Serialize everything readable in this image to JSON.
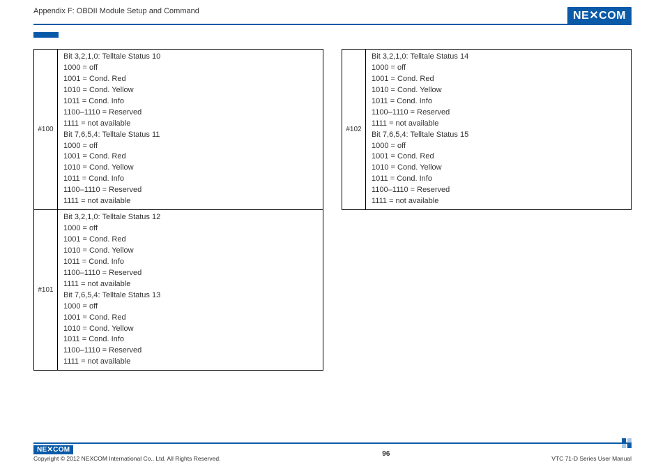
{
  "header": {
    "title": "Appendix F: OBDII Module Setup and Command",
    "logo_text": "NE COM"
  },
  "left_table": [
    {
      "id": "#100",
      "lines": [
        "Bit 3,2,1,0: Telltale Status 10",
        "1000 = off",
        "1001 = Cond. Red",
        "1010 = Cond. Yellow",
        "1011 = Cond. Info",
        "1100–1110 = Reserved",
        "1111 = not available",
        "Bit 7,6,5,4: Telltale Status 11",
        "1000 = off",
        "1001 = Cond. Red",
        "1010 = Cond. Yellow",
        "1011 = Cond. Info",
        "1100–1110 = Reserved",
        "1111 = not available"
      ]
    },
    {
      "id": "#101",
      "lines": [
        "Bit 3,2,1,0: Telltale Status 12",
        "1000 = off",
        "1001 = Cond. Red",
        "1010 = Cond. Yellow",
        "1011 = Cond. Info",
        "1100–1110 = Reserved",
        "1111 = not available",
        "Bit 7,6,5,4: Telltale Status 13",
        "1000 = off",
        "1001 = Cond. Red",
        "1010 = Cond. Yellow",
        "1011 = Cond. Info",
        "1100–1110 = Reserved",
        "1111 = not available"
      ]
    }
  ],
  "right_table": [
    {
      "id": "#102",
      "lines": [
        "Bit 3,2,1,0: Telltale Status 14",
        "1000 = off",
        "1001 = Cond. Red",
        "1010 = Cond. Yellow",
        "1011 = Cond. Info",
        "1100–1110 = Reserved",
        "1111 = not available",
        "Bit 7,6,5,4: Telltale Status 15",
        "1000 = off",
        "1001 = Cond. Red",
        "1010 = Cond. Yellow",
        "1011 = Cond. Info",
        "1100–1110 = Reserved",
        "1111 = not available"
      ]
    }
  ],
  "footer": {
    "logo_text": "NE COM",
    "copyright": "Copyright © 2012 NEXCOM International Co., Ltd. All Rights Reserved.",
    "page": "96",
    "right": "VTC 71-D Series User Manual"
  }
}
